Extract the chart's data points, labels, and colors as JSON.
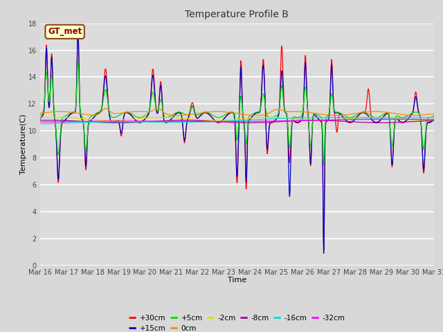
{
  "title": "Temperature Profile B",
  "xlabel": "Time",
  "ylabel": "Temperature(C)",
  "xlim": [
    0,
    15
  ],
  "ylim": [
    0,
    18
  ],
  "yticks": [
    0,
    2,
    4,
    6,
    8,
    10,
    12,
    14,
    16,
    18
  ],
  "xtick_labels": [
    "Mar 16",
    "Mar 17",
    "Mar 18",
    "Mar 19",
    "Mar 20",
    "Mar 21",
    "Mar 22",
    "Mar 23",
    "Mar 24",
    "Mar 25",
    "Mar 26",
    "Mar 27",
    "Mar 28",
    "Mar 29",
    "Mar 30",
    "Mar 31"
  ],
  "series_colors": [
    "#ff0000",
    "#0000cc",
    "#00dd00",
    "#ff8800",
    "#dddd00",
    "#aa00aa",
    "#00dddd",
    "#ff00ff"
  ],
  "series_labels": [
    "+30cm",
    "+15cm",
    "+5cm",
    "0cm",
    "-2cm",
    "-8cm",
    "-16cm",
    "-32cm"
  ],
  "annotation_text": "GT_met",
  "bg_color": "#dcdcdc",
  "fig_bg": "#e8e8e8"
}
